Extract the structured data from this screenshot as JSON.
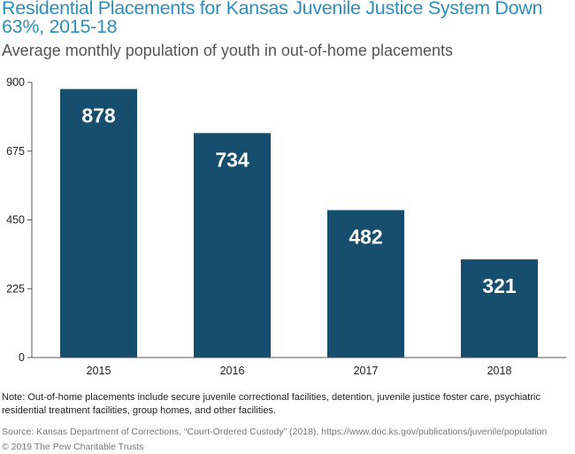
{
  "title": "Residential Placements for Kansas Juvenile Justice System Down 63%, 2015-18",
  "subtitle": "Average monthly population of youth in out-of-home placements",
  "note": "Note: Out-of-home placements include secure juvenile correctional facilities, detention, juvenile justice foster care, psychiatric residential treatment facilities, group homes, and other facilities.",
  "source": "Source: Kansas Department of Corrections, “Court-Ordered Custody” (2018), https://www.doc.ks.gov/publications/juvenile/population",
  "copyright": "© 2019 The Pew Charitable Trusts",
  "colors": {
    "bar": "#154e6e",
    "axis": "#555555",
    "grid": "#cccccc",
    "title": "#2a8fbd"
  },
  "chart_data": {
    "type": "bar",
    "title": "Residential Placements for Kansas Juvenile Justice System Down 63%, 2015-18",
    "subtitle": "Average monthly population of youth in out-of-home placements",
    "xlabel": "",
    "ylabel": "",
    "categories": [
      "2015",
      "2016",
      "2017",
      "2018"
    ],
    "values": [
      878,
      734,
      482,
      321
    ],
    "data_labels": [
      "878",
      "734",
      "482",
      "321"
    ],
    "ylim": [
      0,
      900
    ],
    "yticks": [
      0,
      225,
      450,
      675,
      900
    ],
    "ytick_labels": [
      "0",
      "225",
      "450",
      "675",
      "900"
    ],
    "grid": false,
    "legend": "none"
  }
}
